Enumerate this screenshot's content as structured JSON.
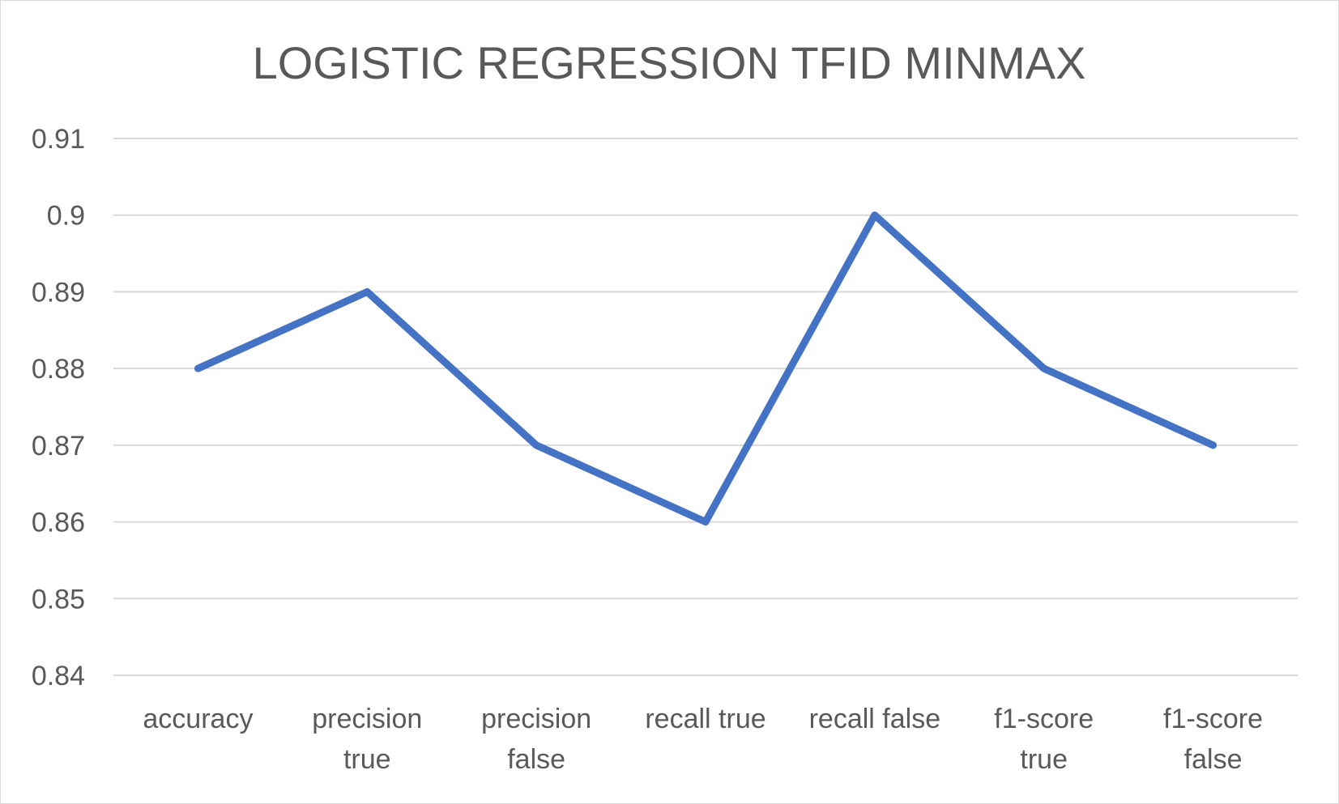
{
  "chart_data": {
    "type": "line",
    "title": "LOGISTIC REGRESSION TFID MINMAX",
    "xlabel": "",
    "ylabel": "",
    "categories": [
      [
        "accuracy"
      ],
      [
        "precision",
        "true"
      ],
      [
        "precision",
        "false"
      ],
      [
        "recall true"
      ],
      [
        "recall false"
      ],
      [
        "f1-score",
        "true"
      ],
      [
        "f1-score",
        "false"
      ]
    ],
    "series": [
      {
        "values": [
          0.88,
          0.89,
          0.87,
          0.86,
          0.9,
          0.88,
          0.87
        ],
        "color": "#4472c4"
      }
    ],
    "ylim": [
      0.84,
      0.91
    ],
    "yticks": [
      "0.84",
      "0.85",
      "0.86",
      "0.87",
      "0.88",
      "0.89",
      "0.9",
      "0.91"
    ],
    "grid": true,
    "legend": "none"
  }
}
